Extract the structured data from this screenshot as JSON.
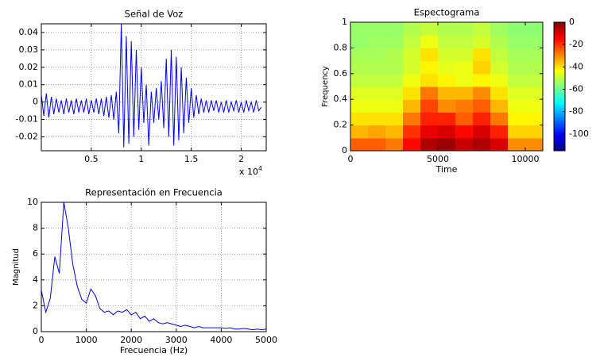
{
  "chart_data": [
    {
      "type": "line",
      "title": "Señal de Voz",
      "color": "#0000ff",
      "x": [
        0,
        250,
        500,
        750,
        1000,
        1250,
        1500,
        1750,
        2000,
        2250,
        2500,
        2750,
        3000,
        3250,
        3500,
        3750,
        4000,
        4250,
        4500,
        4750,
        5000,
        5250,
        5500,
        5750,
        6000,
        6250,
        6500,
        6750,
        7000,
        7250,
        7500,
        7750,
        8000,
        8250,
        8500,
        8750,
        9000,
        9250,
        9500,
        9750,
        10000,
        10250,
        10500,
        10750,
        11000,
        11250,
        11500,
        11750,
        12000,
        12250,
        12500,
        12750,
        13000,
        13250,
        13500,
        13750,
        14000,
        14250,
        14500,
        14750,
        15000,
        15250,
        15500,
        15750,
        16000,
        16250,
        16500,
        16750,
        17000,
        17250,
        17500,
        17750,
        18000,
        18250,
        18500,
        18750,
        19000,
        19250,
        19500,
        19750,
        20000,
        20250,
        20500,
        20750,
        21000,
        21250,
        21500,
        21750,
        22000
      ],
      "values": [
        0.004,
        -0.008,
        0.005,
        -0.009,
        0.003,
        -0.007,
        0.002,
        -0.006,
        0.001,
        -0.007,
        0.002,
        -0.006,
        0.001,
        -0.007,
        0.002,
        -0.006,
        0.001,
        -0.006,
        0.002,
        -0.007,
        0.001,
        -0.006,
        0.002,
        -0.007,
        0.002,
        -0.008,
        0.003,
        -0.009,
        0.004,
        -0.01,
        0.006,
        -0.018,
        0.045,
        -0.026,
        0.038,
        -0.024,
        0.035,
        -0.02,
        0.03,
        -0.016,
        0.02,
        -0.012,
        0.01,
        -0.025,
        0.006,
        -0.012,
        0.008,
        -0.01,
        0.012,
        -0.015,
        0.025,
        -0.02,
        0.03,
        -0.025,
        0.026,
        -0.022,
        0.02,
        -0.018,
        0.014,
        -0.012,
        0.008,
        -0.009,
        0.004,
        -0.007,
        0.002,
        -0.006,
        0.001,
        -0.006,
        0.001,
        -0.005,
        0.001,
        -0.006,
        0,
        -0.006,
        0.001,
        -0.006,
        0,
        -0.005,
        0.001,
        -0.006,
        0,
        -0.006,
        0.001,
        -0.005,
        0,
        -0.006,
        0.001,
        -0.005,
        -0.003
      ],
      "xlim": [
        0,
        22500
      ],
      "xticks": [
        {
          "value": 5000,
          "label": "0.5"
        },
        {
          "value": 10000,
          "label": "1"
        },
        {
          "value": 15000,
          "label": "1.5"
        },
        {
          "value": 20000,
          "label": "2"
        }
      ],
      "x_multiplier": {
        "base": "x 10",
        "exponent": "4"
      },
      "ylim": [
        -0.028,
        0.045
      ],
      "yticks": [
        -0.02,
        -0.01,
        0,
        0.01,
        0.02,
        0.03,
        0.04
      ],
      "grid": true
    },
    {
      "type": "heatmap",
      "title": "Espectograma",
      "xlabel": "Time",
      "ylabel": "Frequency",
      "x": [
        500,
        1500,
        2500,
        3500,
        4500,
        5500,
        6500,
        7500,
        8500,
        9500,
        10500
      ],
      "y": [
        0.05,
        0.15,
        0.25,
        0.35,
        0.45,
        0.55,
        0.65,
        0.75,
        0.85,
        0.95
      ],
      "z": [
        [
          -25,
          -25,
          -28,
          -15,
          -5,
          -3,
          -8,
          -5,
          -10,
          -30,
          -30
        ],
        [
          -35,
          -33,
          -35,
          -20,
          -12,
          -10,
          -15,
          -10,
          -18,
          -38,
          -38
        ],
        [
          -40,
          -40,
          -40,
          -28,
          -18,
          -18,
          -25,
          -18,
          -28,
          -42,
          -42
        ],
        [
          -45,
          -45,
          -45,
          -35,
          -22,
          -30,
          -28,
          -25,
          -35,
          -45,
          -45
        ],
        [
          -47,
          -47,
          -47,
          -40,
          -28,
          -35,
          -35,
          -30,
          -40,
          -47,
          -47
        ],
        [
          -50,
          -50,
          -50,
          -45,
          -40,
          -42,
          -45,
          -42,
          -45,
          -50,
          -50
        ],
        [
          -52,
          -52,
          -52,
          -48,
          -42,
          -46,
          -45,
          -38,
          -48,
          -52,
          -52
        ],
        [
          -53,
          -53,
          -52,
          -48,
          -40,
          -48,
          -48,
          -40,
          -50,
          -53,
          -53
        ],
        [
          -55,
          -54,
          -54,
          -50,
          -45,
          -50,
          -50,
          -48,
          -52,
          -55,
          -55
        ],
        [
          -55,
          -55,
          -55,
          -52,
          -50,
          -52,
          -52,
          -50,
          -54,
          -56,
          -56
        ]
      ],
      "xlim": [
        0,
        11000
      ],
      "xticks": [
        0,
        5000,
        10000
      ],
      "ylim": [
        0,
        1
      ],
      "yticks": [
        0,
        0.2,
        0.4,
        0.6,
        0.8,
        1
      ],
      "clim": [
        -115,
        0
      ],
      "colorbar_ticks": [
        0,
        -20,
        -40,
        -60,
        -80,
        -100
      ],
      "colormap": "jet",
      "grid": false
    },
    {
      "type": "line",
      "title": "Representación en Frecuencia",
      "xlabel": "Frecuencia (Hz)",
      "ylabel": "Magnitud",
      "color": "#0000ff",
      "x": [
        0,
        100,
        200,
        300,
        400,
        500,
        600,
        700,
        800,
        900,
        1000,
        1100,
        1200,
        1300,
        1400,
        1500,
        1600,
        1700,
        1800,
        1900,
        2000,
        2100,
        2200,
        2300,
        2400,
        2500,
        2600,
        2700,
        2800,
        2900,
        3000,
        3100,
        3200,
        3300,
        3400,
        3500,
        3600,
        3700,
        3800,
        3900,
        4000,
        4100,
        4200,
        4300,
        4400,
        4500,
        4600,
        4700,
        4800,
        4900,
        5000
      ],
      "values": [
        3.2,
        1.5,
        2.6,
        5.8,
        4.5,
        10,
        8,
        5.2,
        3.5,
        2.5,
        2.2,
        3.3,
        2.8,
        1.8,
        1.5,
        1.6,
        1.3,
        1.6,
        1.5,
        1.7,
        1.3,
        1.5,
        1,
        1.2,
        0.8,
        1,
        0.7,
        0.6,
        0.7,
        0.6,
        0.5,
        0.4,
        0.5,
        0.4,
        0.3,
        0.4,
        0.3,
        0.3,
        0.3,
        0.3,
        0.3,
        0.25,
        0.3,
        0.2,
        0.2,
        0.25,
        0.2,
        0.15,
        0.2,
        0.15,
        0.2
      ],
      "xlim": [
        0,
        5000
      ],
      "xticks": [
        0,
        1000,
        2000,
        3000,
        4000,
        5000
      ],
      "ylim": [
        0,
        10
      ],
      "yticks": [
        0,
        2,
        4,
        6,
        8,
        10
      ],
      "grid": true
    }
  ]
}
